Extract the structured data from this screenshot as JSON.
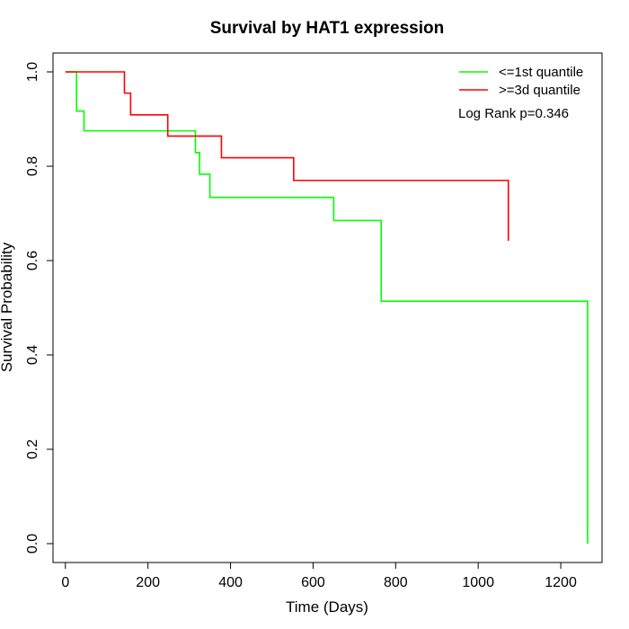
{
  "chart_data": {
    "type": "line",
    "title": "Survival by HAT1 expression",
    "xlabel": "Time (Days)",
    "ylabel": "Survival Probability",
    "xlim": [
      -30,
      1300
    ],
    "ylim": [
      -0.04,
      1.04
    ],
    "xticks": [
      0,
      200,
      400,
      600,
      800,
      1000,
      1200
    ],
    "yticks": [
      0.0,
      0.2,
      0.4,
      0.6,
      0.8,
      1.0
    ],
    "xtick_labels": [
      "0",
      "200",
      "400",
      "600",
      "800",
      "1000",
      "1200"
    ],
    "ytick_labels": [
      "0.0",
      "0.2",
      "0.4",
      "0.6",
      "0.8",
      "1.0"
    ],
    "grid": false,
    "legend_position": "top-right",
    "annotation": "Log Rank p=0.346",
    "series": [
      {
        "name": "<=1st quantile",
        "color": "#00ff00",
        "step": true,
        "x": [
          0,
          25,
          27,
          45,
          282,
          315,
          325,
          350,
          650,
          765,
          1265,
          1265
        ],
        "y": [
          1.0,
          1.0,
          0.917,
          0.875,
          0.875,
          0.829,
          0.783,
          0.734,
          0.685,
          0.514,
          0.257,
          0.0
        ]
      },
      {
        "name": ">=3d quantile",
        "color": "#ff0000",
        "step": true,
        "x": [
          0,
          138,
          143,
          158,
          248,
          378,
          553,
          1073
        ],
        "y": [
          1.0,
          1.0,
          0.955,
          0.909,
          0.864,
          0.818,
          0.77,
          0.642
        ]
      }
    ]
  }
}
